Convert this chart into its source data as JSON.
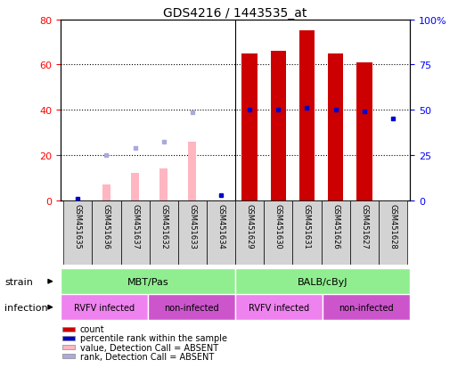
{
  "title": "GDS4216 / 1443535_at",
  "samples": [
    "GSM451635",
    "GSM451636",
    "GSM451637",
    "GSM451632",
    "GSM451633",
    "GSM451634",
    "GSM451629",
    "GSM451630",
    "GSM451631",
    "GSM451626",
    "GSM451627",
    "GSM451628"
  ],
  "count_values": [
    0,
    0,
    0,
    0,
    0,
    0,
    65,
    66,
    75,
    65,
    61,
    0
  ],
  "percentile_values": [
    1,
    0,
    0,
    0,
    0,
    3,
    50,
    50,
    51,
    50,
    49,
    45
  ],
  "absent_value_bars": [
    0,
    7,
    12,
    14,
    26,
    0,
    0,
    0,
    0,
    0,
    0,
    0
  ],
  "absent_rank_dots": [
    0,
    20,
    23,
    26,
    39,
    0,
    0,
    0,
    0,
    0,
    0,
    0
  ],
  "has_count": [
    false,
    false,
    false,
    false,
    false,
    false,
    true,
    true,
    true,
    true,
    true,
    false
  ],
  "has_percentile": [
    true,
    false,
    false,
    false,
    false,
    true,
    true,
    true,
    true,
    true,
    true,
    true
  ],
  "has_absent_value": [
    false,
    true,
    true,
    true,
    true,
    false,
    false,
    false,
    false,
    false,
    false,
    false
  ],
  "has_absent_rank": [
    false,
    true,
    true,
    true,
    true,
    false,
    false,
    false,
    false,
    false,
    false,
    false
  ],
  "ylim_left": [
    0,
    80
  ],
  "ylim_right": [
    0,
    100
  ],
  "left_ticks": [
    0,
    20,
    40,
    60,
    80
  ],
  "right_ticks": [
    0,
    25,
    50,
    75,
    100
  ],
  "bar_color_count": "#CC0000",
  "bar_color_absent": "#FFB6C1",
  "dot_color_percentile": "#0000CC",
  "dot_color_absent_rank": "#AAAADD",
  "strain_labels": [
    "MBT/Pas",
    "BALB/cByJ"
  ],
  "strain_color": "#90EE90",
  "infection_labels": [
    "RVFV infected",
    "non-infected",
    "RVFV infected",
    "non-infected"
  ],
  "infection_colors": [
    "#EE82EE",
    "#CC55CC",
    "#EE82EE",
    "#CC55CC"
  ],
  "legend_items": [
    {
      "label": "count",
      "color": "#CC0000"
    },
    {
      "label": "percentile rank within the sample",
      "color": "#0000CC"
    },
    {
      "label": "value, Detection Call = ABSENT",
      "color": "#FFB6C1"
    },
    {
      "label": "rank, Detection Call = ABSENT",
      "color": "#AAAADD"
    }
  ]
}
